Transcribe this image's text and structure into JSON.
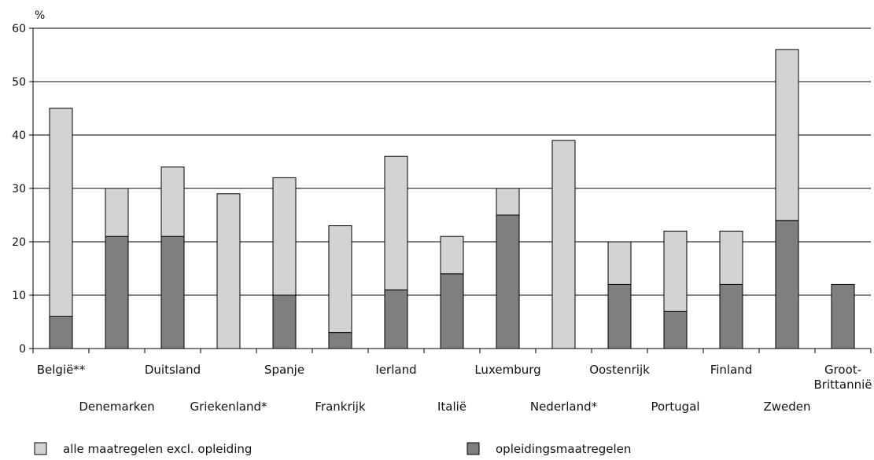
{
  "chart_data": {
    "type": "bar",
    "stacked": true,
    "ylabel": "%",
    "ylim": [
      0,
      60
    ],
    "yticks": [
      0,
      10,
      20,
      30,
      40,
      50,
      60
    ],
    "grid": true,
    "legend_position": "bottom",
    "categories": [
      "België**",
      "Denemarken",
      "Duitsland",
      "Griekenland*",
      "Spanje",
      "Frankrijk",
      "Ierland",
      "Italië",
      "Luxemburg",
      "Nederland*",
      "Oostenrijk",
      "Portugal",
      "Finland",
      "Zweden",
      "Groot-Brittannië"
    ],
    "series": [
      {
        "name": "opleidingsmaatregelen",
        "color": "#7f7f7f",
        "values": [
          6,
          21,
          21,
          0,
          10,
          3,
          11,
          14,
          25,
          0,
          12,
          7,
          12,
          24,
          12
        ]
      },
      {
        "name": "alle maatregelen excl. opleiding",
        "color": "#d3d3d3",
        "values": [
          39,
          9,
          13,
          29,
          22,
          20,
          25,
          7,
          5,
          39,
          8,
          15,
          10,
          32,
          0
        ]
      }
    ]
  }
}
